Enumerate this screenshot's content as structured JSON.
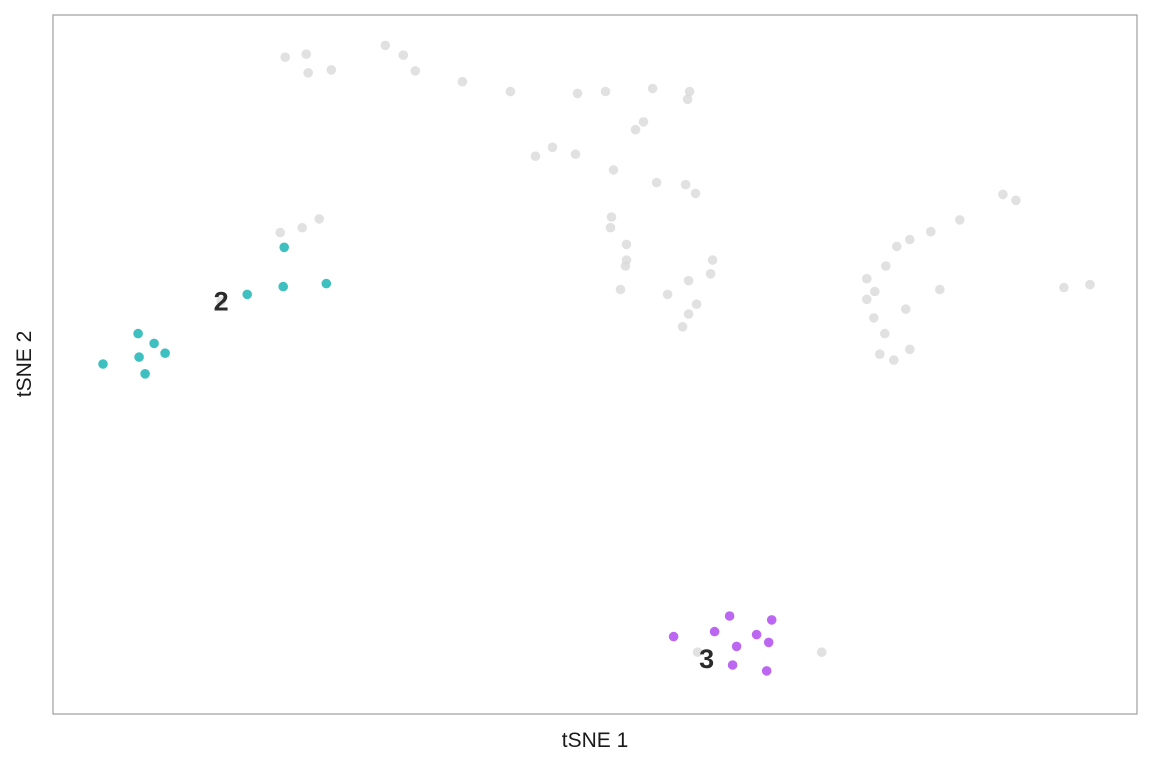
{
  "chart_data": {
    "type": "scatter",
    "xlabel": "tSNE 1",
    "ylabel": "tSNE 2",
    "xlim": [
      0,
      1083
    ],
    "ylim": [
      -713,
      0
    ],
    "grid": false,
    "legend": "none",
    "colors": {
      "background": "#d9d9d9",
      "cluster_2": "#1cb5b5",
      "cluster_3": "#b04cf0",
      "frame": "#9e9e9e"
    },
    "series": [
      {
        "color": "#d9d9d9",
        "points": [
          [
            232,
            -43
          ],
          [
            253,
            -40
          ],
          [
            255,
            -59
          ],
          [
            278,
            -56
          ],
          [
            332,
            -31
          ],
          [
            350,
            -41
          ],
          [
            362,
            -57
          ],
          [
            409,
            -68
          ],
          [
            457,
            -78
          ],
          [
            524,
            -80
          ],
          [
            552,
            -78
          ],
          [
            599,
            -75
          ],
          [
            636,
            -78
          ],
          [
            634,
            -86
          ],
          [
            590,
            -109
          ],
          [
            582,
            -117
          ],
          [
            499,
            -135
          ],
          [
            482,
            -144
          ],
          [
            522,
            -142
          ],
          [
            560,
            -158
          ],
          [
            603,
            -171
          ],
          [
            632,
            -173
          ],
          [
            642,
            -182
          ],
          [
            558,
            -206
          ],
          [
            557,
            -217
          ],
          [
            573,
            -234
          ],
          [
            573,
            -250
          ],
          [
            572,
            -256
          ],
          [
            567,
            -280
          ],
          [
            614,
            -285
          ],
          [
            635,
            -271
          ],
          [
            659,
            -250
          ],
          [
            657,
            -264
          ],
          [
            643,
            -295
          ],
          [
            635,
            -305
          ],
          [
            629,
            -318
          ],
          [
            949,
            -183
          ],
          [
            962,
            -189
          ],
          [
            906,
            -209
          ],
          [
            877,
            -221
          ],
          [
            856,
            -229
          ],
          [
            843,
            -236
          ],
          [
            832,
            -256
          ],
          [
            813,
            -269
          ],
          [
            821,
            -282
          ],
          [
            813,
            -290
          ],
          [
            820,
            -309
          ],
          [
            852,
            -300
          ],
          [
            831,
            -325
          ],
          [
            886,
            -280
          ],
          [
            1010,
            -278
          ],
          [
            1036,
            -275
          ],
          [
            826,
            -346
          ],
          [
            840,
            -352
          ],
          [
            856,
            -341
          ],
          [
            227,
            -222
          ],
          [
            249,
            -217
          ],
          [
            266,
            -208
          ],
          [
            168,
            -292
          ],
          [
            644,
            -650
          ],
          [
            768,
            -650
          ]
        ]
      },
      {
        "name": "2",
        "color": "#1cb5b5",
        "points": [
          [
            231,
            -237
          ],
          [
            194,
            -285
          ],
          [
            230,
            -277
          ],
          [
            273,
            -274
          ],
          [
            85,
            -325
          ],
          [
            101,
            -335
          ],
          [
            112,
            -345
          ],
          [
            86,
            -349
          ],
          [
            50,
            -356
          ],
          [
            92,
            -366
          ]
        ]
      },
      {
        "name": "3",
        "color": "#b04cf0",
        "points": [
          [
            676,
            -613
          ],
          [
            718,
            -617
          ],
          [
            661,
            -629
          ],
          [
            703,
            -632
          ],
          [
            620,
            -634
          ],
          [
            683,
            -644
          ],
          [
            715,
            -640
          ],
          [
            679,
            -663
          ],
          [
            713,
            -669
          ]
        ]
      }
    ],
    "annotations": [
      {
        "text": "2",
        "x": 168,
        "y": -292
      },
      {
        "text": "3",
        "x": 653,
        "y": -657
      }
    ]
  }
}
